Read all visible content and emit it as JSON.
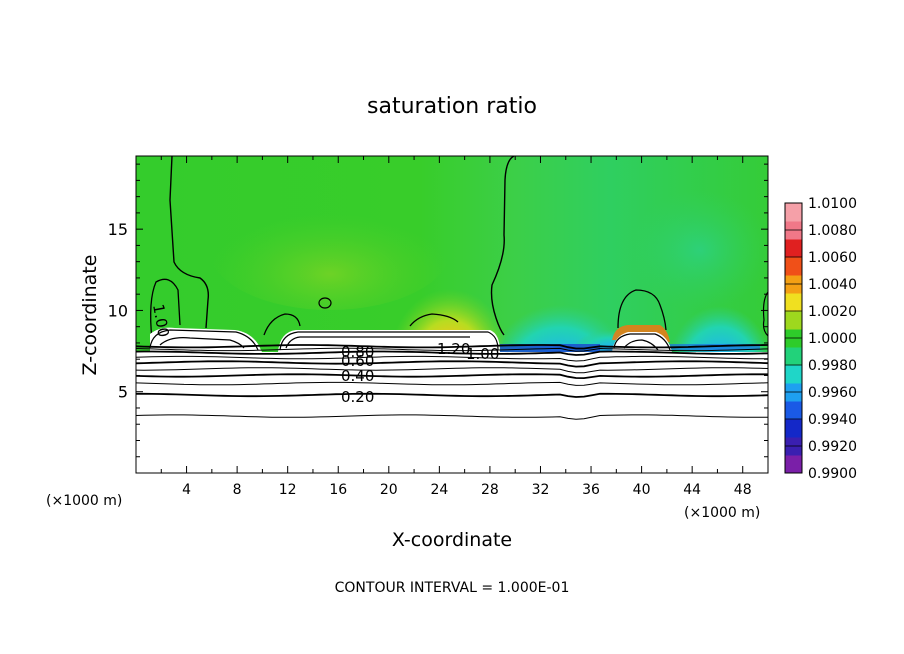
{
  "chart_data": {
    "type": "heatmap",
    "title": "saturation ratio",
    "xlabel": "X-coordinate",
    "ylabel": "Z-coordinate",
    "x_units_left": "(×1000 m)",
    "x_units_right": "(×1000 m)",
    "xlim": [
      0,
      50
    ],
    "ylim": [
      0,
      19.5
    ],
    "xticks": [
      4,
      8,
      12,
      16,
      20,
      24,
      28,
      32,
      36,
      40,
      44,
      48
    ],
    "yticks": [
      5,
      10,
      15
    ],
    "colorbar": {
      "min": 0.99,
      "max": 1.01,
      "ticks": [
        "1.0100",
        "1.0080",
        "1.0060",
        "1.0040",
        "1.0020",
        "1.0000",
        "0.9980",
        "0.9960",
        "0.9940",
        "0.9920",
        "0.9900"
      ],
      "colors": [
        "#7a1fa8",
        "#3a1fb0",
        "#1428c8",
        "#1a5ae6",
        "#1ea0f0",
        "#1fd6c8",
        "#22d27a",
        "#2ecc2a",
        "#9ed81e",
        "#f0e020",
        "#f4a014",
        "#f05018",
        "#e02020",
        "#f07888",
        "#f5a0a8"
      ]
    },
    "contour_interval_text": "CONTOUR INTERVAL = 1.000E-01",
    "contour_labels": [
      "1.00",
      "1.20",
      "1.00",
      "0.80",
      "0.60",
      "0.40",
      "0.20"
    ],
    "surface_level_z": 7.9,
    "contours_z": [
      0.2,
      0.4,
      0.6,
      0.8,
      1.0
    ],
    "contour_heights": [
      3.5,
      4.8,
      5.5,
      6.0,
      6.4,
      6.8,
      7.1,
      7.4,
      7.6,
      7.8
    ],
    "features": {
      "supersaturated_max_center": [
        24.5,
        9.5
      ],
      "subsaturated_region": [
        30,
        48
      ]
    }
  }
}
